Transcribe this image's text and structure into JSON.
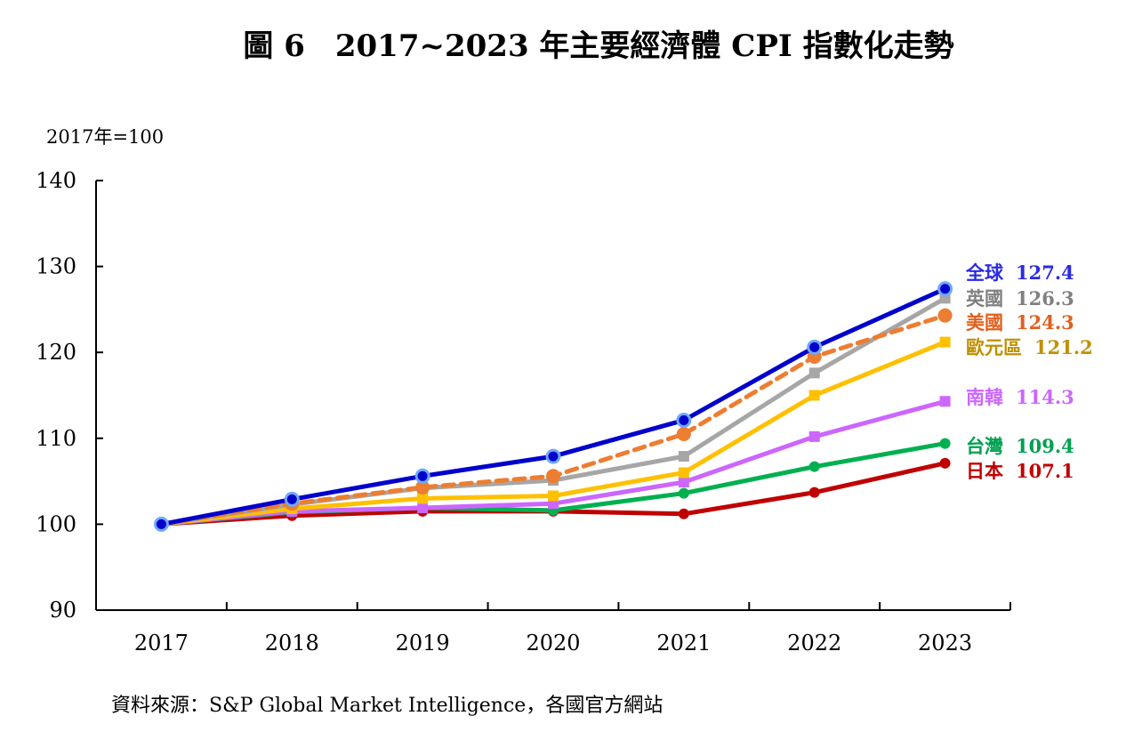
{
  "chart_data": {
    "type": "line",
    "title": "圖 6　2017~2023 年主要經濟體 CPI 指數化走勢",
    "unit_label": "2017年=100",
    "x": [
      "2017",
      "2018",
      "2019",
      "2020",
      "2021",
      "2022",
      "2023"
    ],
    "ylim": [
      90,
      140
    ],
    "yticks": [
      "90",
      "100",
      "110",
      "120",
      "130",
      "140"
    ],
    "grid": false,
    "legend": "end-labels-right",
    "source": "資料來源：S&P Global Market Intelligence，各國官方網站",
    "series": [
      {
        "name": "日本",
        "end_label": "107.1",
        "color": "#c00000",
        "label_color": "#c00000",
        "marker": "circle",
        "dashed": false,
        "values": [
          100,
          101.0,
          101.5,
          101.5,
          101.2,
          103.7,
          107.1
        ]
      },
      {
        "name": "台灣",
        "end_label": "109.4",
        "color": "#00b050",
        "label_color": "#00a050",
        "marker": "circle",
        "dashed": false,
        "values": [
          100,
          101.4,
          101.9,
          101.6,
          103.6,
          106.7,
          109.4
        ]
      },
      {
        "name": "南韓",
        "end_label": "114.3",
        "color": "#cc66ff",
        "label_color": "#cc66ff",
        "marker": "square",
        "dashed": false,
        "values": [
          100,
          101.5,
          101.9,
          102.4,
          104.9,
          110.2,
          114.3
        ]
      },
      {
        "name": "歐元區",
        "end_label": "121.2",
        "color": "#ffc000",
        "label_color": "#c09000",
        "marker": "square",
        "dashed": false,
        "values": [
          100,
          101.8,
          103.0,
          103.3,
          106.0,
          115.0,
          121.2
        ]
      },
      {
        "name": "英國",
        "end_label": "126.3",
        "color": "#a6a6a6",
        "label_color": "#808080",
        "marker": "square",
        "dashed": false,
        "values": [
          100,
          102.3,
          104.2,
          105.1,
          107.9,
          117.6,
          126.3
        ]
      },
      {
        "name": "美國",
        "end_label": "124.3",
        "color": "#ed7d31",
        "label_color": "#e06020",
        "marker": "bigcircle",
        "dashed": true,
        "values": [
          100,
          102.4,
          104.3,
          105.6,
          110.5,
          119.5,
          124.3
        ]
      },
      {
        "name": "全球",
        "end_label": "127.4",
        "color": "#0000cc",
        "label_color": "#2a2ae6",
        "marker": "ringcircle",
        "dashed": false,
        "values": [
          100,
          102.9,
          105.6,
          107.9,
          112.1,
          120.6,
          127.4
        ]
      }
    ]
  }
}
